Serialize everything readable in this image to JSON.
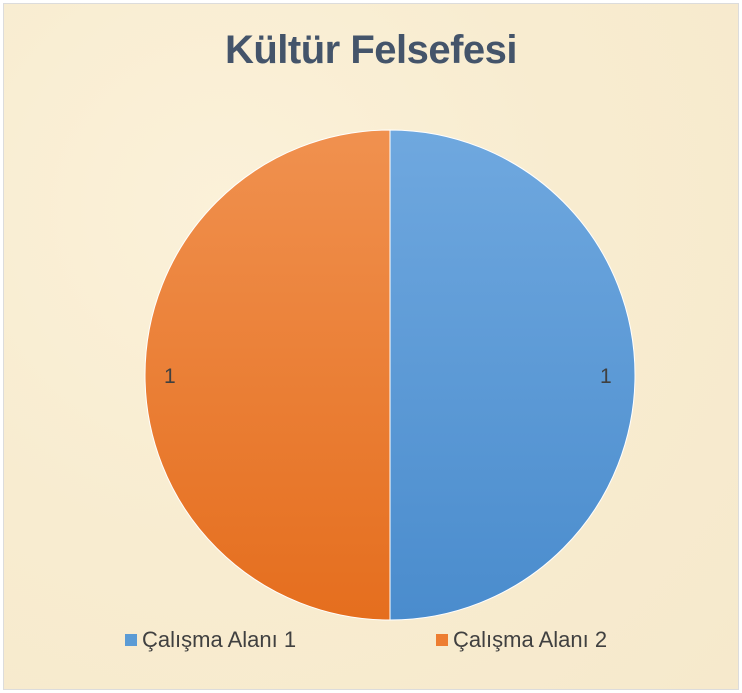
{
  "chart_data": {
    "type": "pie",
    "title": "Kültür Felsefesi",
    "categories": [
      "Çalışma Alanı 1",
      "Çalışma Alanı 2"
    ],
    "values": [
      1,
      1
    ],
    "data_labels": [
      "1",
      "1"
    ],
    "colors": [
      "#5b9bd5",
      "#ed7d31"
    ],
    "legend": "bottom"
  }
}
